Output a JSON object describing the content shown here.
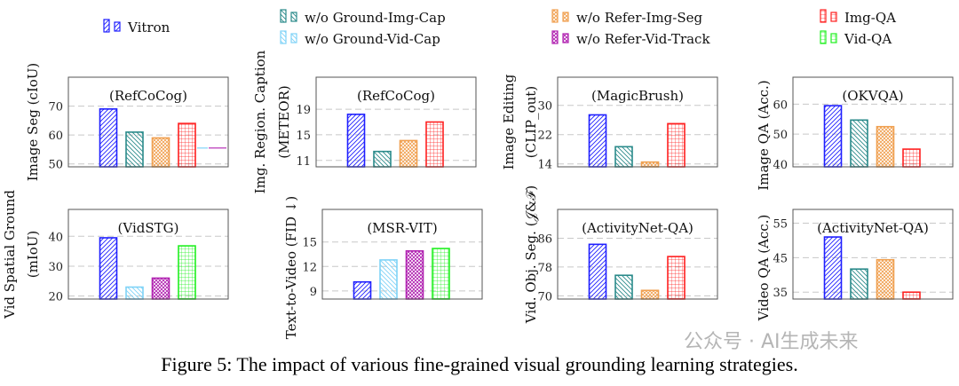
{
  "series": [
    {
      "name": "Vitron",
      "color": "#1f1fff",
      "pattern": "ne"
    },
    {
      "name": "w/o Ground-Img-Cap",
      "color": "#2a8a8a",
      "pattern": "nw"
    },
    {
      "name": "w/o Ground-Vid-Cap",
      "color": "#7fd3f7",
      "pattern": "nw"
    },
    {
      "name": "w/o Refer-Img-Seg",
      "color": "#f0a050",
      "pattern": "dots"
    },
    {
      "name": "w/o Refer-Vid-Track",
      "color": "#b020b0",
      "pattern": "dots"
    },
    {
      "name": "Img-QA",
      "color": "#ff2020",
      "pattern": "grid"
    },
    {
      "name": "Vid-QA",
      "color": "#20f020",
      "pattern": "grid"
    }
  ],
  "chart_data": [
    {
      "type": "bar",
      "title": "(RefCoCog)",
      "ylabel": [
        "Image Seg (cIoU)"
      ],
      "ylim": [
        49,
        80
      ],
      "yticks": [
        50,
        60,
        70
      ],
      "bars": [
        {
          "series": 0,
          "value": 69
        },
        {
          "series": 1,
          "value": 61
        },
        {
          "series": 3,
          "value": 59
        },
        {
          "series": 5,
          "value": 64
        }
      ],
      "lines": [
        {
          "series": 2,
          "value": 55.5
        },
        {
          "series": 4,
          "value": 55.5
        }
      ]
    },
    {
      "type": "bar",
      "title": "(VidSTG)",
      "ylabel": [
        "Vid Spatial Ground",
        "(mIoU)"
      ],
      "ylim": [
        19,
        49
      ],
      "yticks": [
        20,
        30,
        40
      ],
      "bars": [
        {
          "series": 0,
          "value": 39.5
        },
        {
          "series": 2,
          "value": 23
        },
        {
          "series": 4,
          "value": 26
        },
        {
          "series": 6,
          "value": 36.8
        }
      ]
    },
    {
      "type": "bar",
      "title": "(RefCoCog)",
      "ylabel": [
        "Img. Region. Caption",
        "(METEOR)"
      ],
      "ylim": [
        10,
        24
      ],
      "yticks": [
        11,
        15,
        19
      ],
      "bars": [
        {
          "series": 0,
          "value": 18.2
        },
        {
          "series": 1,
          "value": 12.4
        },
        {
          "series": 3,
          "value": 14.1
        },
        {
          "series": 5,
          "value": 17.0
        }
      ]
    },
    {
      "type": "bar",
      "title": "(MSR-VIT)",
      "ylabel": [
        "Text-to-Video (FID ↓)"
      ],
      "ylim": [
        8,
        19
      ],
      "yticks": [
        9,
        12,
        15
      ],
      "bars": [
        {
          "series": 0,
          "value": 10.1
        },
        {
          "series": 2,
          "value": 12.8
        },
        {
          "series": 4,
          "value": 13.9
        },
        {
          "series": 6,
          "value": 14.2
        }
      ]
    },
    {
      "type": "bar",
      "title": "(MagicBrush)",
      "ylabel": [
        "Image Editing",
        "(CLIP_out)"
      ],
      "ylim": [
        13.2,
        37.7
      ],
      "yticks": [
        14,
        22,
        30
      ],
      "bars": [
        {
          "series": 0,
          "value": 27.4
        },
        {
          "series": 1,
          "value": 18.7
        },
        {
          "series": 3,
          "value": 14.5
        },
        {
          "series": 5,
          "value": 25
        }
      ]
    },
    {
      "type": "bar",
      "title": "(OKVQA)",
      "ylabel": [
        "Image QA (Acc.)"
      ],
      "ylim": [
        39.1,
        69
      ],
      "yticks": [
        40,
        50,
        60
      ],
      "bars": [
        {
          "series": 0,
          "value": 59.5
        },
        {
          "series": 1,
          "value": 54.7
        },
        {
          "series": 3,
          "value": 52.5
        },
        {
          "series": 5,
          "value": 45
        }
      ]
    },
    {
      "type": "bar",
      "title": "(ActivityNet-QA)",
      "ylabel": [
        "Vid. Obj. Seg. (𝒥&ℱ)"
      ],
      "ylim": [
        69.1,
        94
      ],
      "yticks": [
        70,
        78,
        86
      ],
      "bars": [
        {
          "series": 0,
          "value": 84.3
        },
        {
          "series": 1,
          "value": 75.7
        },
        {
          "series": 3,
          "value": 71.5
        },
        {
          "series": 5,
          "value": 80.9
        }
      ]
    },
    {
      "type": "bar",
      "title": "(ActivityNet-QA)",
      "ylabel": [
        "Video QA (Acc.)"
      ],
      "ylim": [
        33,
        59
      ],
      "yticks": [
        35,
        45,
        55
      ],
      "bars": [
        {
          "series": 0,
          "value": 51
        },
        {
          "series": 1,
          "value": 41.7
        },
        {
          "series": 3,
          "value": 44.4
        },
        {
          "series": 5,
          "value": 35
        }
      ]
    }
  ],
  "caption": "Figure 5: The impact of various fine-grained visual grounding learning strategies.",
  "watermark": "公众号 · AI生成未来"
}
